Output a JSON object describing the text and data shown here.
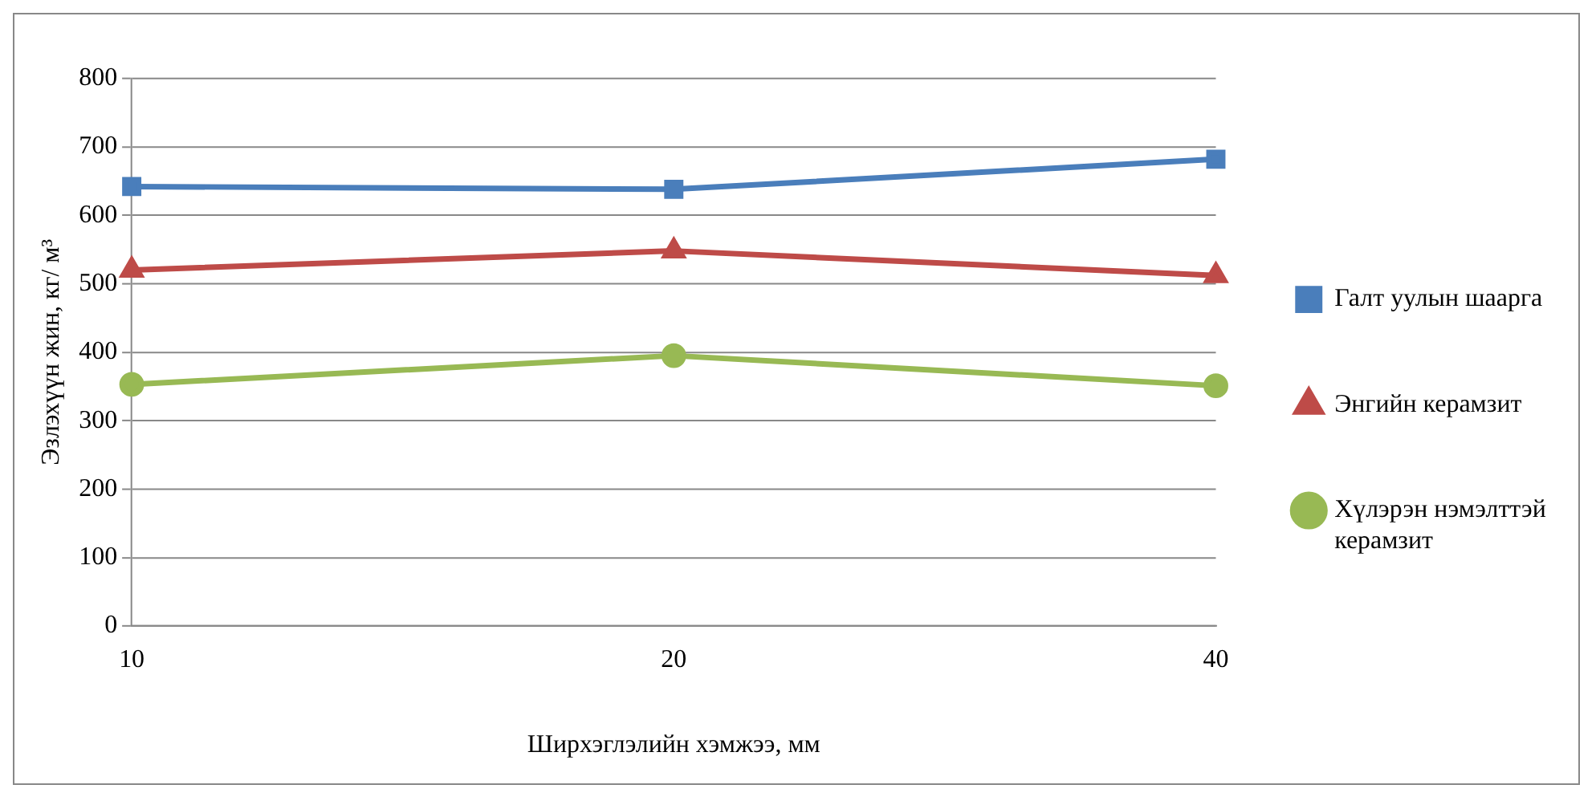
{
  "chart_data": {
    "type": "line",
    "xlabel": "Ширхэглэлийн хэмжээ, мм",
    "ylabel": "Эзлэхүүн жин, кг/ м³",
    "categories": [
      "10",
      "20",
      "40"
    ],
    "ylim": [
      0,
      800
    ],
    "yticks": [
      0,
      100,
      200,
      300,
      400,
      500,
      600,
      700,
      800
    ],
    "grid": "y",
    "legend": "right",
    "series": [
      {
        "name": "Галт уулын шаарга",
        "color": "#4a7ebb",
        "marker": "square",
        "values": [
          642,
          638,
          682
        ]
      },
      {
        "name": "Энгийн керамзит",
        "color": "#be4b48",
        "marker": "triangle",
        "values": [
          520,
          548,
          512
        ]
      },
      {
        "name": "Хүлэрэн нэмэлттэй керамзит",
        "color": "#98b954",
        "marker": "circle",
        "values": [
          353,
          395,
          351
        ]
      }
    ]
  }
}
